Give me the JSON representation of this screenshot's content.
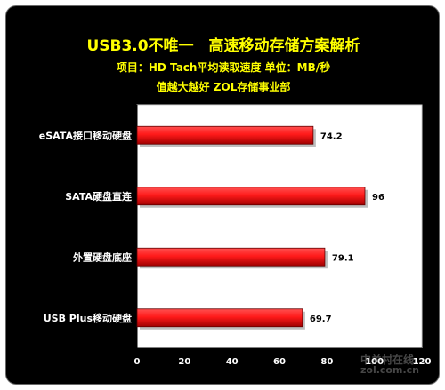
{
  "header": {
    "title": "USB3.0不唯一　高速移动存储方案解析",
    "subtitle": "项目：HD  Tach平均读取速度   单位：MB/秒",
    "tagline": "值越大越好   ZOL存储事业部"
  },
  "watermark": {
    "line1": "中关村在线",
    "line2": "zol.com.cn"
  },
  "colors": {
    "background": "#000000",
    "title": "#ffff00",
    "bar": "#ff1a1a",
    "bar_dark": "#b00000",
    "plot_area": "#ffffff",
    "text": "#ffffff"
  },
  "chart_data": {
    "type": "bar",
    "orientation": "horizontal",
    "categories": [
      "eSATA接口移动硬盘",
      "SATA硬盘直连",
      "外置硬盘底座",
      "USB Plus移动硬盘"
    ],
    "values": [
      74.2,
      96,
      79.1,
      69.7
    ],
    "data_labels": [
      "74.2",
      "96",
      "79.1",
      "69.7"
    ],
    "xlim": [
      0,
      120
    ],
    "xticks": [
      0,
      20,
      40,
      60,
      80,
      100,
      120
    ],
    "grid": false,
    "legend": "none"
  }
}
